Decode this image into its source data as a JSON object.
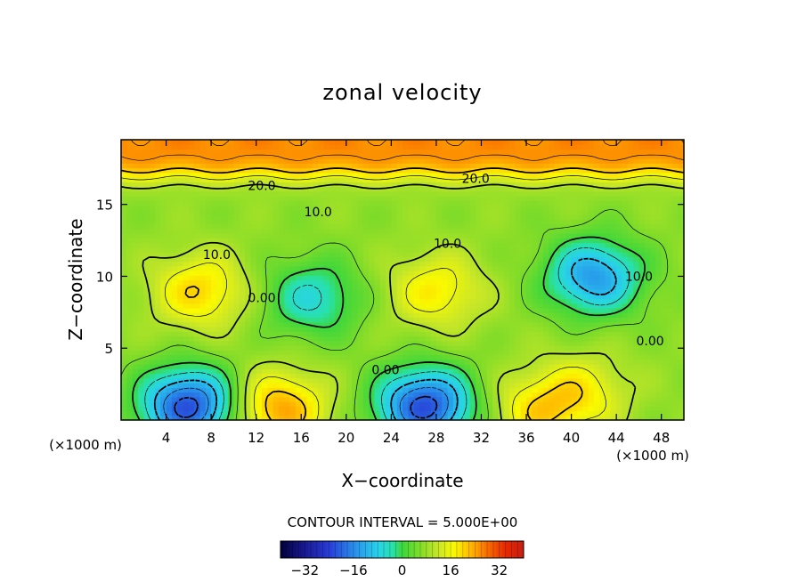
{
  "chart_data": {
    "type": "heatmap",
    "title": "zonal velocity",
    "xlabel": "X−coordinate",
    "ylabel": "Z−coordinate",
    "x_unit": "(×1000 m)",
    "x_unit_right": "(×1000 m)",
    "xlim": [
      0,
      50
    ],
    "ylim": [
      0,
      19.5
    ],
    "x_ticks": [
      4,
      8,
      12,
      16,
      20,
      24,
      28,
      32,
      36,
      40,
      44,
      48
    ],
    "y_ticks": [
      5,
      10,
      15
    ],
    "contour_interval_text": "CONTOUR INTERVAL = 5.000E+00",
    "contour_labels": [
      {
        "text": "20.0",
        "x": 12.5,
        "z": 16.3
      },
      {
        "text": "20.0",
        "x": 31.5,
        "z": 16.8
      },
      {
        "text": "10.0",
        "x": 17.5,
        "z": 14.5
      },
      {
        "text": "10.0",
        "x": 8.5,
        "z": 11.5
      },
      {
        "text": "10.0",
        "x": 29.0,
        "z": 12.3
      },
      {
        "text": "10.0",
        "x": 46.0,
        "z": 10.0
      },
      {
        "text": "0.00",
        "x": 12.5,
        "z": 8.5
      },
      {
        "text": "0.00",
        "x": 23.5,
        "z": 3.5
      },
      {
        "text": "0.00",
        "x": 47.0,
        "z": 5.5
      }
    ],
    "features": [
      {
        "kind": "max",
        "x": 7,
        "z": 9,
        "value": 20
      },
      {
        "kind": "max",
        "x": 28,
        "z": 9,
        "value": 18
      },
      {
        "kind": "max",
        "x": 41,
        "z": 2,
        "value": 16
      },
      {
        "kind": "max",
        "x": 14,
        "z": 0.8,
        "value": 24
      },
      {
        "kind": "max",
        "x": 37,
        "z": 0.6,
        "value": 18
      },
      {
        "kind": "min",
        "x": 6,
        "z": 1,
        "value": -22
      },
      {
        "kind": "min",
        "x": 27,
        "z": 1,
        "value": -22
      },
      {
        "kind": "min",
        "x": 42,
        "z": 10,
        "value": -14
      },
      {
        "kind": "min",
        "x": 17,
        "z": 8.5,
        "value": -6
      },
      {
        "kind": "top_band",
        "z_from": 17,
        "value": 26
      }
    ],
    "colorbar": {
      "range": [
        -40,
        40
      ],
      "ticks": [
        -32,
        -16,
        0,
        16,
        32
      ],
      "tick_labels": [
        "−32",
        "−16",
        "0",
        "16",
        "32"
      ]
    }
  }
}
